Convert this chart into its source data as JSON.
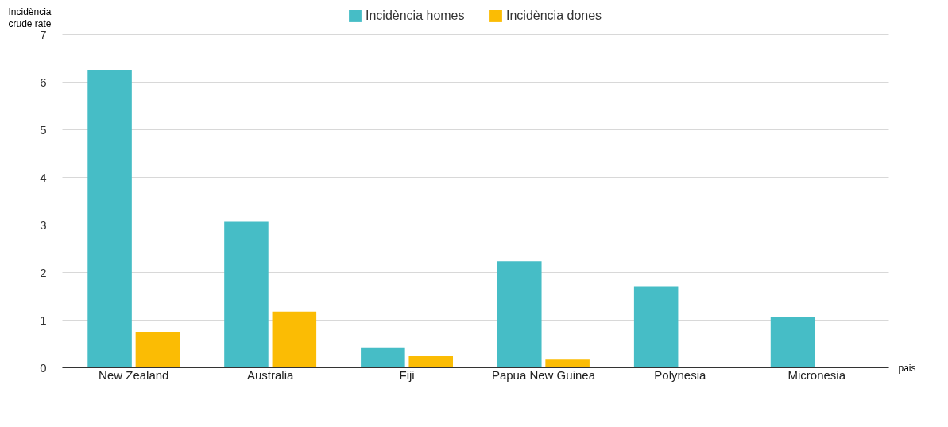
{
  "chart_data": {
    "type": "bar",
    "ylabel": "Incidència crude rate",
    "xlabel": "pais",
    "categories": [
      "New Zealand",
      "Australia",
      "Fiji",
      "Papua New Guinea",
      "Polynesia",
      "Micronesia"
    ],
    "series": [
      {
        "name": "Incidència homes",
        "color": "#46bdc6",
        "values": [
          6.25,
          3.06,
          0.42,
          2.23,
          1.71,
          1.06
        ]
      },
      {
        "name": "Incidència dones",
        "color": "#fbbc04",
        "values": [
          0.75,
          1.17,
          0.24,
          0.18,
          null,
          null
        ]
      }
    ],
    "ylim": [
      0,
      7
    ],
    "yticks": [
      0,
      1,
      2,
      3,
      4,
      5,
      6,
      7
    ],
    "grid": "y",
    "legend": "top"
  }
}
